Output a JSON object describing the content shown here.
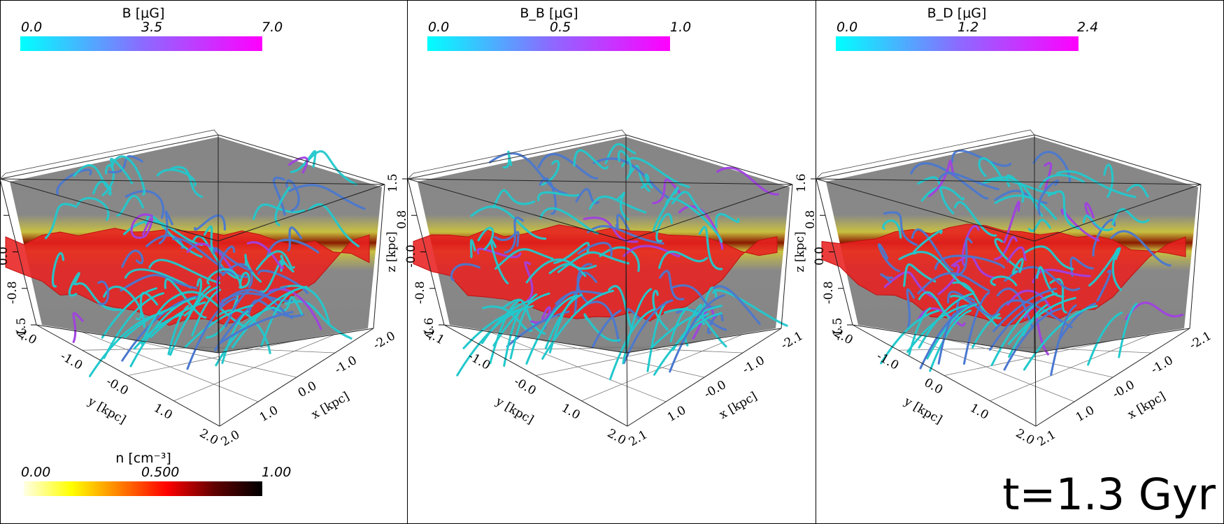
{
  "panels": [
    {
      "colorbar": {
        "title": "B [μG]",
        "ticks": [
          "0.0",
          "3.5",
          "7.0"
        ],
        "start": "#00ffff",
        "mid": "#8a6cff",
        "end": "#ff00ff"
      },
      "axes": {
        "z_label": "z [kpc]",
        "y_label": "y [kpc]",
        "x_label": "x [kpc]",
        "z_ticks": [
          "1.5",
          "0.8",
          "0.0",
          "-0.8",
          "-1.5"
        ],
        "y_ticks": [
          "-2.0",
          "-1.0",
          "-0.0",
          "1.0",
          "2.0"
        ],
        "x_ticks": [
          "2.0",
          "1.0",
          "0.0",
          "-1.0",
          "-2.0"
        ]
      }
    },
    {
      "colorbar": {
        "title": "B_B [μG]",
        "ticks": [
          "0.0",
          "0.5",
          "1.0"
        ],
        "start": "#00ffff",
        "mid": "#8a6cff",
        "end": "#ff00ff"
      },
      "axes": {
        "z_label": "z [kpc]",
        "y_label": "y [kpc]",
        "x_label": "x [kpc]",
        "z_ticks": [
          "1.5",
          "0.8",
          "-0.0",
          "-0.8",
          "-1.6"
        ],
        "y_ticks": [
          "-2.1",
          "-1.0",
          "-0.0",
          "1.0",
          "2.0"
        ],
        "x_ticks": [
          "2.1",
          "1.0",
          "-0.0",
          "-1.0",
          "-2.1"
        ]
      }
    },
    {
      "colorbar": {
        "title": "B_D [μG]",
        "ticks": [
          "0.0",
          "1.2",
          "2.4"
        ],
        "start": "#00ffff",
        "mid": "#8a6cff",
        "end": "#ff00ff"
      },
      "axes": {
        "z_label": "z [kpc]",
        "y_label": "y [kpc]",
        "x_label": "x [kpc]",
        "z_ticks": [
          "1.6",
          "0.8",
          "0.0",
          "-0.8",
          "-1.5"
        ],
        "y_ticks": [
          "-2.0",
          "-1.0",
          "0.0",
          "1.0",
          "2.0"
        ],
        "x_ticks": [
          "2.1",
          "1.0",
          "-0.0",
          "-1.0",
          "-2.1"
        ]
      }
    }
  ],
  "density_colorbar": {
    "title": "n [cm⁻³]",
    "ticks": [
      "0.00",
      "0.500",
      "1.00"
    ],
    "stops": [
      "#ffffe6",
      "#ffff00",
      "#ff8000",
      "#ff0000",
      "#600000",
      "#000000"
    ]
  },
  "time_label": "t=1.3 Gyr",
  "colors": {
    "disk": "#e82020",
    "wall": "#808080",
    "line_low": "#22c8cc",
    "line_mid": "#4a78d0",
    "line_high": "#a040e0"
  }
}
